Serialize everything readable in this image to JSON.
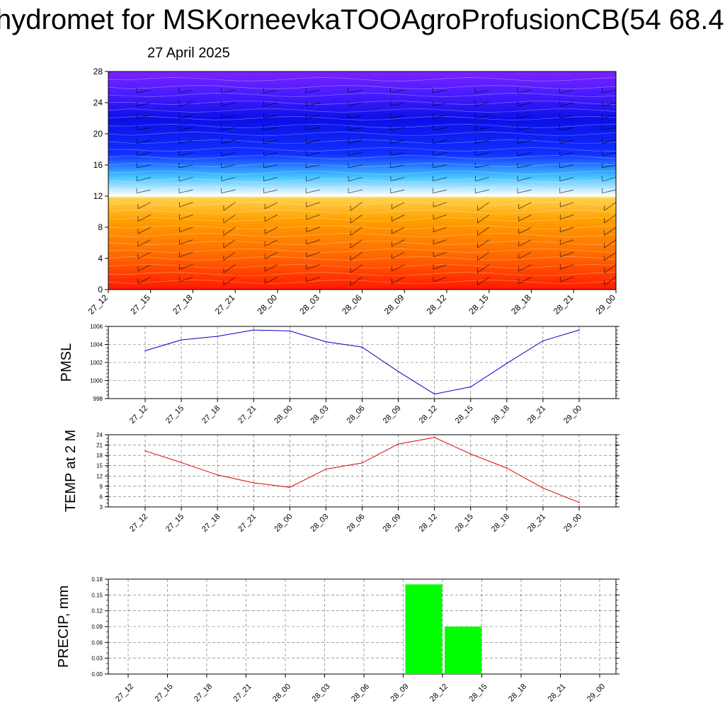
{
  "title": "hydromet for MSKorneevkaTOOAgroProfusionCB(54 68.4",
  "date": "27 April 2025",
  "time_labels": [
    "27_12",
    "27_15",
    "27_18",
    "27_21",
    "28_00",
    "28_03",
    "28_06",
    "28_09",
    "28_12",
    "28_15",
    "28_18",
    "28_21",
    "29_00"
  ],
  "chart_data": [
    {
      "type": "heatmap",
      "title": "",
      "y_ticks": [
        "0",
        "4",
        "8",
        "12",
        "16",
        "20",
        "24",
        "28"
      ],
      "ylim": [
        0,
        28
      ],
      "x_tick_labels": [
        "27_12",
        "27_15",
        "27_18",
        "27_21",
        "28_00",
        "28_03",
        "28_06",
        "28_09",
        "28_12",
        "28_15",
        "28_18",
        "28_21",
        "29_00"
      ],
      "overlay": "wind barbs",
      "colors": [
        "#ff1a00",
        "#ff8c00",
        "#ffd24d",
        "#ffffff",
        "#3fc0ff",
        "#1030ff",
        "#0a10e6",
        "#6a20ff"
      ],
      "grid": false
    },
    {
      "type": "line",
      "ylabel": "PMSL",
      "x": [
        "27_12",
        "27_15",
        "27_18",
        "27_21",
        "28_00",
        "28_03",
        "28_06",
        "28_09",
        "28_12",
        "28_15",
        "28_18",
        "28_21",
        "29_00"
      ],
      "values": [
        1003.3,
        1004.5,
        1004.9,
        1005.6,
        1005.5,
        1004.3,
        1003.7,
        1001.0,
        998.5,
        999.3,
        1001.9,
        1004.4,
        1005.6
      ],
      "ylim": [
        998,
        1006
      ],
      "y_ticks": [
        "998",
        "1000",
        "1002",
        "1004",
        "1006"
      ],
      "color": "#0000cc",
      "grid": true
    },
    {
      "type": "line",
      "ylabel": "TEMP at 2 M",
      "x": [
        "27_12",
        "27_15",
        "27_18",
        "27_21",
        "28_00",
        "28_03",
        "28_06",
        "28_09",
        "28_12",
        "28_15",
        "28_18",
        "28_21",
        "29_00"
      ],
      "values": [
        19.3,
        15.9,
        12.3,
        10.0,
        8.7,
        14.0,
        15.8,
        21.3,
        23.2,
        18.4,
        14.3,
        8.5,
        4.3
      ],
      "ylim": [
        3,
        24
      ],
      "y_ticks": [
        "3",
        "6",
        "9",
        "12",
        "15",
        "18",
        "21",
        "24"
      ],
      "color": "#dd0000",
      "grid": true
    },
    {
      "type": "bar",
      "ylabel": "PRECIP, mm",
      "categories": [
        "27_12",
        "27_15",
        "27_18",
        "27_21",
        "28_00",
        "28_03",
        "28_06",
        "28_09",
        "28_12",
        "28_15",
        "28_18",
        "28_21",
        "29_00"
      ],
      "values": [
        0,
        0,
        0,
        0,
        0,
        0,
        0,
        0.17,
        0.09,
        0,
        0,
        0,
        0
      ],
      "ylim": [
        0,
        0.18
      ],
      "y_ticks": [
        "0.00",
        "0.03",
        "0.06",
        "0.09",
        "0.12",
        "0.15",
        "0.18"
      ],
      "color": "#00ff00",
      "grid": true
    }
  ]
}
